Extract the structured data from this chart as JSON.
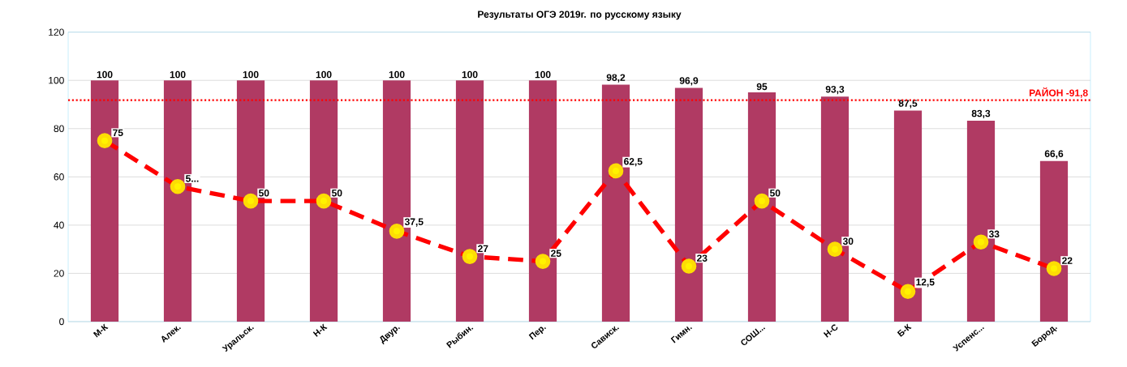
{
  "chart_data": {
    "type": "bar",
    "title": "Результаты ОГЭ 2019г. по русскому языку",
    "categories": [
      "М-К",
      "Алек.",
      "Уральск.",
      "Н-К",
      "Двур.",
      "Рыбин.",
      "Пер.",
      "Сависк.",
      "Гимн.",
      "СОШ...",
      "Н-С",
      "Б-К",
      "Успенс...",
      "Бород."
    ],
    "series": [
      {
        "color": "#b03a63",
        "values": [
          100,
          100,
          100,
          100,
          100,
          100,
          100,
          98.2,
          96.9,
          95,
          93.3,
          87.5,
          83.3,
          66.6
        ],
        "value_labels": [
          "100",
          "100",
          "100",
          "100",
          "100",
          "100",
          "100",
          "98,2",
          "96,9",
          "95",
          "93,3",
          "87,5",
          "83,3",
          "66,6"
        ]
      },
      {
        "type": "line",
        "color": "#ff0000",
        "values": [
          75,
          56,
          50,
          50,
          37.5,
          27,
          25,
          62.5,
          23,
          50,
          30,
          12.5,
          33,
          22
        ],
        "value_labels": [
          "75",
          "5...",
          "50",
          "50",
          "37,5",
          "27",
          "25",
          "62,5",
          "23",
          "50",
          "30",
          "12,5",
          "33",
          "22"
        ]
      }
    ],
    "ylim": [
      0,
      120
    ],
    "yticks": [
      0,
      20,
      40,
      60,
      80,
      100,
      120
    ],
    "grid": "y",
    "marker": "circle",
    "line_style": "dashed",
    "ref_lines": [
      {
        "axis": "y",
        "value": 91.8,
        "label": "РАЙОН -91,8",
        "color": "#ff0000",
        "line_style": "dotted"
      }
    ]
  }
}
